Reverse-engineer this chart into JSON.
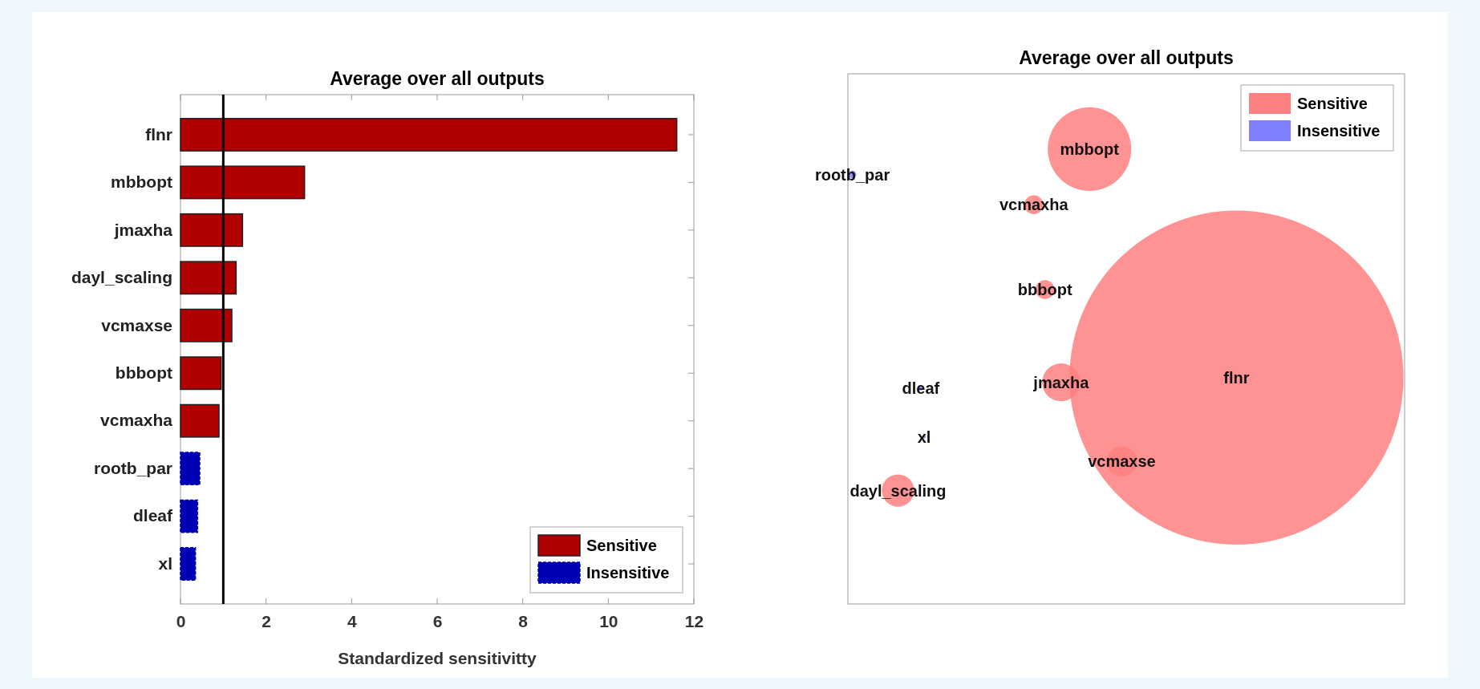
{
  "chart_data": [
    {
      "type": "bar",
      "title": "Average over all outputs",
      "xlabel": "Standardized sensitivitty",
      "orientation": "horizontal",
      "stacked": true,
      "categories": [
        "flnr",
        "mbbopt",
        "jmaxha",
        "dayl_scaling",
        "vcmaxse",
        "bbbopt",
        "vcmaxha",
        "rootb_par",
        "dleaf",
        "xl"
      ],
      "series": [
        {
          "name": "Sensitive",
          "color": "#b00000",
          "values": [
            11.6,
            2.9,
            1.45,
            1.3,
            1.2,
            0.95,
            0.9,
            null,
            null,
            null
          ]
        },
        {
          "name": "Insensitive",
          "color": "#0000b4",
          "values": [
            null,
            null,
            null,
            null,
            null,
            null,
            null,
            0.45,
            0.4,
            0.35
          ]
        }
      ],
      "xlim": [
        0,
        12
      ],
      "xticks": [
        0,
        2,
        4,
        6,
        8,
        10,
        12
      ],
      "ref_lines": [
        {
          "axis": "x",
          "value": 1,
          "color": "#000000"
        }
      ],
      "legend": "bottom right"
    },
    {
      "type": "other",
      "title": "Average over all outputs",
      "legend": "top right",
      "series": [
        {
          "name": "Sensitive",
          "color": "#ff8080"
        },
        {
          "name": "Insensitive",
          "color": "#8080ff"
        }
      ],
      "annotations": [
        "flnr",
        "mbbopt",
        "vcmaxha",
        "bbbopt",
        "jmaxha",
        "vcmaxse",
        "dayl_scaling",
        "rootb_par",
        "dleaf",
        "xl"
      ]
    }
  ]
}
